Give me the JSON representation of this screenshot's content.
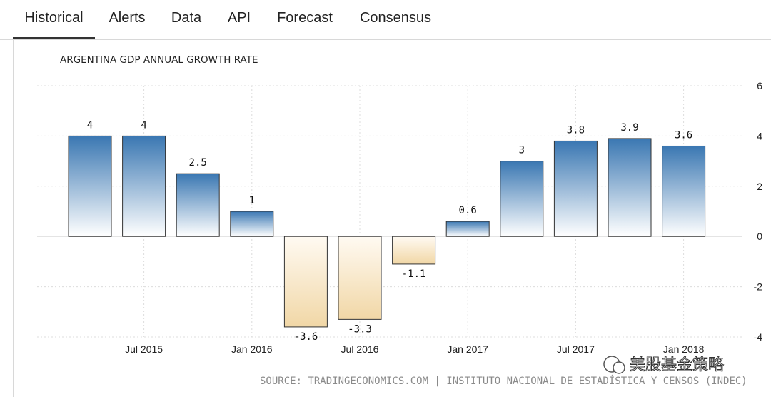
{
  "tabs": [
    {
      "label": "Historical",
      "active": true
    },
    {
      "label": "Alerts",
      "active": false
    },
    {
      "label": "Data",
      "active": false
    },
    {
      "label": "API",
      "active": false
    },
    {
      "label": "Forecast",
      "active": false
    },
    {
      "label": "Consensus",
      "active": false
    }
  ],
  "source": "SOURCE: TRADINGECONOMICS.COM | INSTITUTO NACIONAL DE ESTADÍSTICA Y CENSOS (INDEC)",
  "watermark": "美股基金策略",
  "colors": {
    "positive_top": "#3a77b2",
    "positive_bottom": "#ffffff",
    "negative_top": "#fffaf2",
    "negative_bottom": "#f1d7a6",
    "grid": "#dcdcdc"
  },
  "chart_data": {
    "type": "bar",
    "title": "ARGENTINA GDP ANNUAL GROWTH RATE",
    "categories": [
      "2015 Q2",
      "2015 Q3",
      "2015 Q4",
      "2016 Q1",
      "2016 Q2",
      "2016 Q3",
      "2016 Q4",
      "2017 Q1",
      "2017 Q2",
      "2017 Q3",
      "2017 Q4",
      "2018 Q1"
    ],
    "values": [
      4,
      4,
      2.5,
      1,
      -3.6,
      -3.3,
      -1.1,
      0.6,
      3,
      3.8,
      3.9,
      3.6
    ],
    "value_labels": [
      "4",
      "4",
      "2.5",
      "1",
      "-3.6",
      "-3.3",
      "-1.1",
      "0.6",
      "3",
      "3.8",
      "3.9",
      "3.6"
    ],
    "x_tick_labels": [
      "Jul 2015",
      "Jan 2016",
      "Jul 2016",
      "Jan 2017",
      "Jul 2017",
      "Jan 2018"
    ],
    "y_ticks": [
      "6",
      "4",
      "2",
      "0",
      "-2",
      "-4"
    ],
    "y_tick_values": [
      6,
      4,
      2,
      0,
      -2,
      -4
    ],
    "ylim": [
      -4,
      6
    ],
    "xlabel": "",
    "ylabel": "",
    "grid": true,
    "legend": "none"
  }
}
